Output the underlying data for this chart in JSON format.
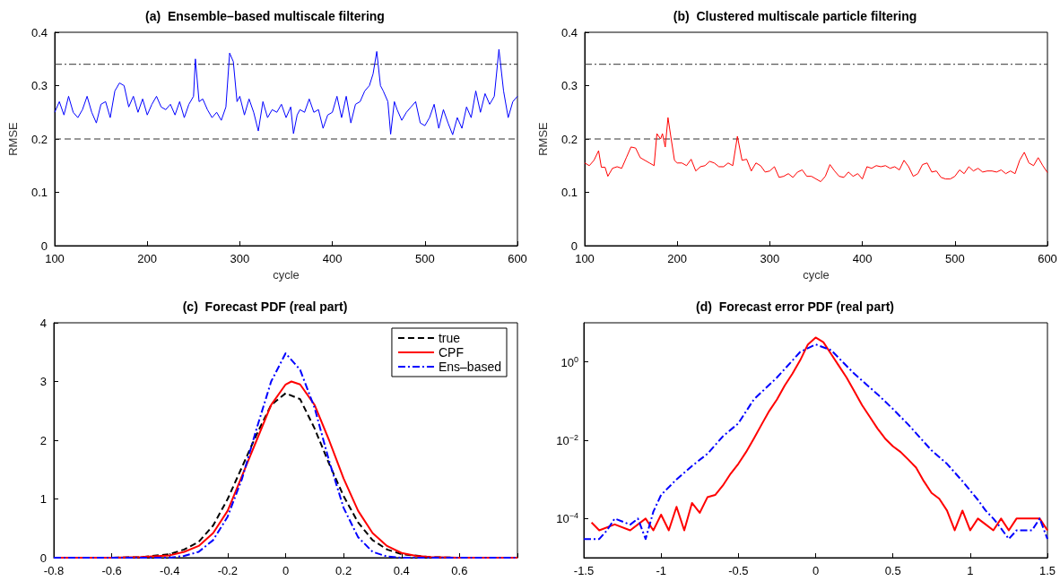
{
  "chart_data": [
    {
      "type": "line",
      "title": "(a)  Ensemble–based multiscale filtering",
      "xlabel": "cycle",
      "ylabel": "RMSE",
      "xlim": [
        100,
        600
      ],
      "xticks": [
        100,
        200,
        300,
        400,
        500,
        600
      ],
      "ylim": [
        0,
        0.4
      ],
      "yticks": [
        0,
        0.1,
        0.2,
        0.3,
        0.4
      ],
      "grid": false,
      "legend": false,
      "line_style": "solid",
      "ref_lines": [
        {
          "axis": "y",
          "value": 0.2,
          "color": "#333333",
          "line_style": "dashed"
        },
        {
          "axis": "y",
          "value": 0.34,
          "color": "#333333",
          "line_style": "dashdot"
        }
      ],
      "series": [
        {
          "color": "#0000ff",
          "x": [
            100,
            105,
            110,
            115,
            120,
            125,
            130,
            135,
            140,
            145,
            150,
            155,
            160,
            165,
            170,
            175,
            180,
            185,
            190,
            195,
            200,
            205,
            210,
            215,
            220,
            225,
            230,
            235,
            240,
            245,
            250,
            252,
            256,
            260,
            265,
            270,
            275,
            280,
            285,
            289,
            293,
            297,
            300,
            305,
            310,
            315,
            320,
            325,
            330,
            335,
            340,
            345,
            350,
            355,
            358,
            362,
            365,
            370,
            375,
            380,
            385,
            390,
            395,
            400,
            405,
            410,
            415,
            420,
            425,
            430,
            435,
            440,
            444,
            448,
            452,
            455,
            460,
            463,
            467,
            470,
            475,
            480,
            485,
            490,
            495,
            500,
            505,
            510,
            515,
            520,
            525,
            530,
            535,
            540,
            545,
            550,
            555,
            560,
            565,
            570,
            575,
            580,
            585,
            590,
            595,
            600
          ],
          "values": [
            0.25,
            0.27,
            0.245,
            0.28,
            0.25,
            0.24,
            0.255,
            0.28,
            0.25,
            0.23,
            0.265,
            0.27,
            0.24,
            0.29,
            0.305,
            0.3,
            0.26,
            0.28,
            0.25,
            0.275,
            0.245,
            0.265,
            0.28,
            0.26,
            0.255,
            0.265,
            0.245,
            0.27,
            0.24,
            0.265,
            0.28,
            0.35,
            0.27,
            0.275,
            0.255,
            0.24,
            0.25,
            0.235,
            0.26,
            0.361,
            0.345,
            0.27,
            0.28,
            0.245,
            0.275,
            0.25,
            0.215,
            0.27,
            0.24,
            0.255,
            0.25,
            0.265,
            0.24,
            0.26,
            0.21,
            0.245,
            0.255,
            0.25,
            0.275,
            0.25,
            0.255,
            0.22,
            0.245,
            0.25,
            0.28,
            0.24,
            0.28,
            0.23,
            0.265,
            0.27,
            0.29,
            0.3,
            0.322,
            0.364,
            0.3,
            0.29,
            0.27,
            0.209,
            0.27,
            0.255,
            0.235,
            0.25,
            0.26,
            0.27,
            0.23,
            0.225,
            0.24,
            0.265,
            0.22,
            0.255,
            0.23,
            0.208,
            0.24,
            0.22,
            0.26,
            0.24,
            0.29,
            0.25,
            0.285,
            0.265,
            0.28,
            0.368,
            0.29,
            0.24,
            0.27,
            0.28
          ]
        }
      ]
    },
    {
      "type": "line",
      "title": "(b)  Clustered multiscale particle filtering",
      "xlabel": "cycle",
      "ylabel": "RMSE",
      "xlim": [
        100,
        600
      ],
      "xticks": [
        100,
        200,
        300,
        400,
        500,
        600
      ],
      "ylim": [
        0,
        0.4
      ],
      "yticks": [
        0,
        0.1,
        0.2,
        0.3,
        0.4
      ],
      "grid": false,
      "legend": false,
      "line_style": "solid",
      "ref_lines": [
        {
          "axis": "y",
          "value": 0.2,
          "color": "#333333",
          "line_style": "dashed"
        },
        {
          "axis": "y",
          "value": 0.34,
          "color": "#333333",
          "line_style": "dashdot"
        }
      ],
      "series": [
        {
          "color": "#ff0000",
          "x": [
            100,
            105,
            110,
            115,
            118,
            122,
            125,
            130,
            135,
            140,
            145,
            150,
            155,
            160,
            165,
            170,
            175,
            178,
            182,
            184,
            187,
            190,
            193,
            197,
            200,
            205,
            210,
            215,
            220,
            225,
            230,
            235,
            240,
            245,
            250,
            255,
            260,
            265,
            270,
            275,
            280,
            285,
            290,
            295,
            300,
            305,
            310,
            315,
            320,
            325,
            330,
            335,
            340,
            345,
            350,
            355,
            360,
            365,
            370,
            375,
            380,
            385,
            390,
            395,
            400,
            405,
            410,
            415,
            420,
            425,
            430,
            435,
            440,
            445,
            450,
            455,
            460,
            465,
            470,
            475,
            480,
            485,
            490,
            495,
            500,
            505,
            510,
            515,
            520,
            525,
            530,
            535,
            540,
            545,
            550,
            555,
            560,
            565,
            570,
            575,
            580,
            585,
            590,
            595,
            600
          ],
          "values": [
            0.155,
            0.15,
            0.16,
            0.178,
            0.147,
            0.147,
            0.13,
            0.145,
            0.148,
            0.145,
            0.165,
            0.185,
            0.183,
            0.165,
            0.16,
            0.155,
            0.15,
            0.21,
            0.2,
            0.21,
            0.185,
            0.24,
            0.205,
            0.16,
            0.155,
            0.155,
            0.15,
            0.162,
            0.14,
            0.148,
            0.15,
            0.158,
            0.155,
            0.148,
            0.148,
            0.155,
            0.15,
            0.205,
            0.16,
            0.162,
            0.14,
            0.155,
            0.15,
            0.138,
            0.14,
            0.148,
            0.128,
            0.13,
            0.135,
            0.128,
            0.138,
            0.142,
            0.13,
            0.13,
            0.125,
            0.12,
            0.13,
            0.152,
            0.14,
            0.13,
            0.128,
            0.138,
            0.13,
            0.135,
            0.125,
            0.148,
            0.145,
            0.15,
            0.148,
            0.15,
            0.145,
            0.148,
            0.142,
            0.16,
            0.148,
            0.13,
            0.135,
            0.152,
            0.155,
            0.138,
            0.14,
            0.128,
            0.125,
            0.125,
            0.13,
            0.142,
            0.135,
            0.148,
            0.14,
            0.145,
            0.138,
            0.14,
            0.14,
            0.138,
            0.142,
            0.135,
            0.14,
            0.135,
            0.16,
            0.175,
            0.155,
            0.15,
            0.165,
            0.15,
            0.137
          ]
        }
      ]
    },
    {
      "type": "line",
      "title": "(c)  Forecast PDF (real part)",
      "xlim": [
        -0.8,
        0.8
      ],
      "xticks": [
        -0.8,
        -0.6,
        -0.4,
        -0.2,
        0,
        0.2,
        0.4,
        0.6,
        {
          "value": 0.8,
          "label": null
        }
      ],
      "ylim": [
        0,
        4
      ],
      "yticks": [
        0,
        1,
        2,
        3,
        4
      ],
      "grid": false,
      "legend": "top right",
      "series": [
        {
          "name": "true",
          "color": "#000000",
          "line_style": "dashed",
          "x": [
            -0.8,
            -0.6,
            -0.5,
            -0.4,
            -0.35,
            -0.3,
            -0.25,
            -0.2,
            -0.15,
            -0.1,
            -0.05,
            0,
            0.05,
            0.1,
            0.15,
            0.2,
            0.25,
            0.3,
            0.35,
            0.4,
            0.5,
            0.6,
            0.8
          ],
          "values": [
            0,
            0,
            0.01,
            0.06,
            0.14,
            0.27,
            0.55,
            1.0,
            1.55,
            2.1,
            2.6,
            2.8,
            2.7,
            2.2,
            1.6,
            1.05,
            0.6,
            0.3,
            0.14,
            0.06,
            0.01,
            0,
            0
          ]
        },
        {
          "name": "CPF",
          "color": "#ff0000",
          "line_style": "solid",
          "x": [
            -0.8,
            -0.6,
            -0.5,
            -0.4,
            -0.35,
            -0.3,
            -0.25,
            -0.2,
            -0.15,
            -0.1,
            -0.05,
            0,
            0.02,
            0.05,
            0.1,
            0.15,
            0.2,
            0.25,
            0.3,
            0.35,
            0.4,
            0.45,
            0.5,
            0.6,
            0.8
          ],
          "values": [
            0,
            0,
            0.01,
            0.04,
            0.1,
            0.2,
            0.42,
            0.8,
            1.4,
            2.0,
            2.6,
            2.95,
            3.0,
            2.95,
            2.6,
            2.0,
            1.35,
            0.8,
            0.42,
            0.2,
            0.08,
            0.03,
            0.01,
            0,
            0
          ]
        },
        {
          "name": "Ens–based",
          "color": "#0000ff",
          "line_style": "dashdot",
          "x": [
            -0.8,
            -0.4,
            -0.35,
            -0.3,
            -0.25,
            -0.2,
            -0.15,
            -0.1,
            -0.05,
            0,
            0.05,
            0.1,
            0.15,
            0.2,
            0.25,
            0.3,
            0.35,
            0.4,
            0.8
          ],
          "values": [
            0,
            0,
            0.03,
            0.1,
            0.3,
            0.7,
            1.35,
            2.2,
            3.0,
            3.48,
            3.2,
            2.55,
            1.65,
            0.85,
            0.35,
            0.1,
            0.02,
            0,
            0
          ]
        }
      ]
    },
    {
      "type": "line",
      "title": "(d)  Forecast error PDF (real part)",
      "log": "y",
      "xlim": [
        -1.5,
        1.5
      ],
      "xticks": [
        -1.5,
        -1,
        -0.5,
        0,
        0.5,
        1,
        1.5
      ],
      "ylim": [
        1e-05,
        10
      ],
      "yticks": [
        {
          "value": 0.0001,
          "label": "10$^{−4}$"
        },
        {
          "value": 0.01,
          "label": "10$^{−2}$"
        },
        {
          "value": 1,
          "label": "10$^{0}$"
        }
      ],
      "grid": false,
      "legend": false,
      "series": [
        {
          "color": "#ff0000",
          "line_style": "solid",
          "x": [
            -1.45,
            -1.4,
            -1.3,
            -1.2,
            -1.1,
            -1.05,
            -1.0,
            -0.95,
            -0.9,
            -0.85,
            -0.8,
            -0.75,
            -0.7,
            -0.65,
            -0.6,
            -0.55,
            -0.5,
            -0.45,
            -0.4,
            -0.35,
            -0.3,
            -0.25,
            -0.2,
            -0.15,
            -0.1,
            -0.05,
            0,
            0.05,
            0.1,
            0.15,
            0.2,
            0.25,
            0.3,
            0.35,
            0.4,
            0.45,
            0.5,
            0.55,
            0.6,
            0.65,
            0.7,
            0.75,
            0.8,
            0.85,
            0.9,
            0.95,
            1.0,
            1.05,
            1.1,
            1.15,
            1.2,
            1.25,
            1.3,
            1.45,
            1.5
          ],
          "values": [
            7.9e-05,
            5e-05,
            7.1e-05,
            5e-05,
            0.0001,
            5e-05,
            0.000126,
            5e-05,
            0.0002,
            5e-05,
            0.00025,
            0.00014,
            0.00035,
            0.0004,
            0.0007,
            0.0014,
            0.0025,
            0.005,
            0.011,
            0.025,
            0.056,
            0.11,
            0.25,
            0.5,
            1.1,
            2.8,
            4.2,
            3.2,
            1.6,
            0.8,
            0.4,
            0.18,
            0.079,
            0.04,
            0.02,
            0.011,
            0.007,
            0.005,
            0.0032,
            0.002,
            0.0009,
            0.00045,
            0.00032,
            0.00016,
            5e-05,
            0.00016,
            5e-05,
            0.0001,
            7.1e-05,
            5e-05,
            0.0001,
            5e-05,
            0.0001,
            0.0001,
            5e-05
          ]
        },
        {
          "color": "#0000ff",
          "line_style": "dashdot",
          "x": [
            -1.5,
            -1.4,
            -1.35,
            -1.3,
            -1.2,
            -1.15,
            -1.1,
            -1.05,
            -1.0,
            -0.9,
            -0.8,
            -0.7,
            -0.6,
            -0.5,
            -0.4,
            -0.25,
            -0.1,
            0,
            0.1,
            0.25,
            0.4,
            0.5,
            0.6,
            0.75,
            0.85,
            0.95,
            1.05,
            1.1,
            1.15,
            1.2,
            1.25,
            1.3,
            1.4,
            1.45,
            1.5
          ],
          "values": [
            3e-05,
            3e-05,
            5e-05,
            0.0001,
            7e-05,
            0.0001,
            3e-05,
            0.00015,
            0.0004,
            0.001,
            0.0022,
            0.0045,
            0.0126,
            0.027,
            0.11,
            0.4,
            1.8,
            2.8,
            2.0,
            0.5,
            0.15,
            0.063,
            0.025,
            0.0055,
            0.0025,
            0.0009,
            0.0003,
            0.00016,
            0.0001,
            5.6e-05,
            3e-05,
            5e-05,
            5e-05,
            0.0001,
            3e-05
          ]
        }
      ]
    }
  ]
}
